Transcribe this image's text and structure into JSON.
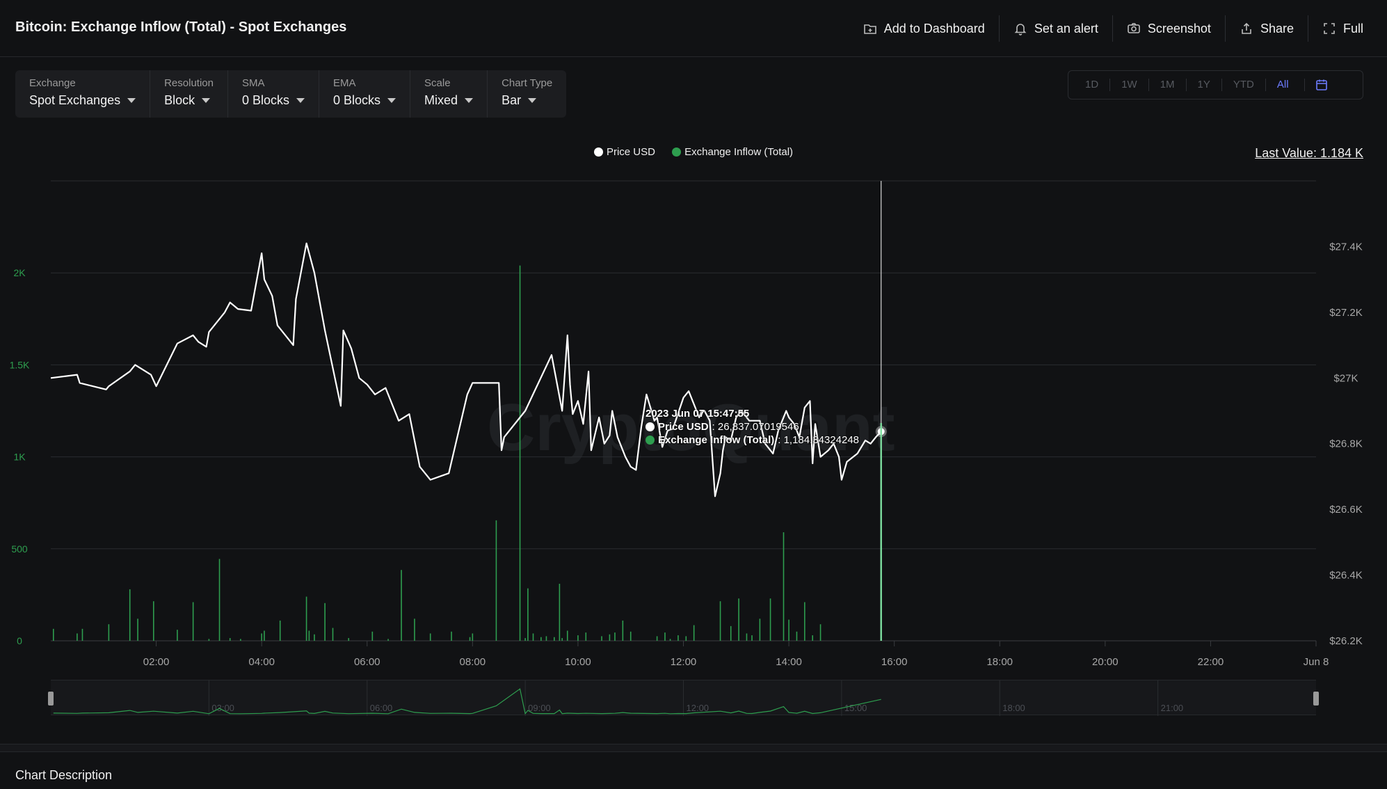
{
  "header": {
    "title": "Bitcoin: Exchange Inflow (Total) - Spot Exchanges",
    "actions": [
      {
        "label": "Add to Dashboard",
        "icon": "dashboard-add-icon"
      },
      {
        "label": "Set an alert",
        "icon": "bell-icon"
      },
      {
        "label": "Screenshot",
        "icon": "camera-icon"
      },
      {
        "label": "Share",
        "icon": "share-icon"
      },
      {
        "label": "Full",
        "icon": "fullscreen-icon"
      }
    ]
  },
  "filters": [
    {
      "label": "Exchange",
      "value": "Spot Exchanges"
    },
    {
      "label": "Resolution",
      "value": "Block"
    },
    {
      "label": "SMA",
      "value": "0 Blocks"
    },
    {
      "label": "EMA",
      "value": "0 Blocks"
    },
    {
      "label": "Scale",
      "value": "Mixed"
    },
    {
      "label": "Chart Type",
      "value": "Bar"
    }
  ],
  "ranges": [
    "1D",
    "1W",
    "1M",
    "1Y",
    "YTD",
    "All"
  ],
  "active_range": "All",
  "legend": {
    "price": "Price USD",
    "inflow": "Exchange Inflow (Total)"
  },
  "last_value": "Last Value: 1.184 K",
  "watermark": "CryptoQuant",
  "tooltip": {
    "time": "2023 Jun 07 15:47:55",
    "price_label": "Price USD",
    "price_value": ": 26,837.07019546",
    "inflow_label": "Exchange Inflow (Total)",
    "inflow_value": ": 1,184.34324248"
  },
  "colors": {
    "price_line": "#ffffff",
    "inflow_bar": "#2e9e4f",
    "left_axis": "#2e9e4f",
    "active_range": "#6d7cff",
    "background": "#111214"
  },
  "chart_data": {
    "type": "line",
    "x_axis": {
      "range": [
        0.0,
        24.0
      ],
      "ticks": [
        {
          "value": 2,
          "label": "02:00"
        },
        {
          "value": 4,
          "label": "04:00"
        },
        {
          "value": 6,
          "label": "06:00"
        },
        {
          "value": 8,
          "label": "08:00"
        },
        {
          "value": 10,
          "label": "10:00"
        },
        {
          "value": 12,
          "label": "12:00"
        },
        {
          "value": 14,
          "label": "14:00"
        },
        {
          "value": 16,
          "label": "16:00"
        },
        {
          "value": 18,
          "label": "18:00"
        },
        {
          "value": 20,
          "label": "20:00"
        },
        {
          "value": 22,
          "label": "22:00"
        },
        {
          "value": 24,
          "label": "Jun 8"
        }
      ]
    },
    "left_axis": {
      "range": [
        0,
        2500
      ],
      "ticks": [
        {
          "value": 0,
          "label": "0"
        },
        {
          "value": 500,
          "label": "500"
        },
        {
          "value": 1000,
          "label": "1K"
        },
        {
          "value": 1500,
          "label": "1.5K"
        },
        {
          "value": 2000,
          "label": "2K"
        }
      ]
    },
    "right_axis": {
      "range": [
        26200,
        27600
      ],
      "ticks": [
        {
          "value": 26200,
          "label": "$26.2K"
        },
        {
          "value": 26400,
          "label": "$26.4K"
        },
        {
          "value": 26600,
          "label": "$26.6K"
        },
        {
          "value": 26800,
          "label": "$26.8K"
        },
        {
          "value": 27000,
          "label": "$27K"
        },
        {
          "value": 27200,
          "label": "$27.2K"
        },
        {
          "value": 27400,
          "label": "$27.4K"
        }
      ]
    },
    "series": [
      {
        "name": "Price USD",
        "type": "line",
        "points": [
          [
            0.0,
            27000
          ],
          [
            0.5,
            27010
          ],
          [
            0.55,
            26985
          ],
          [
            1.05,
            26965
          ],
          [
            1.1,
            26975
          ],
          [
            1.5,
            27020
          ],
          [
            1.6,
            27040
          ],
          [
            1.9,
            27010
          ],
          [
            2.0,
            26975
          ],
          [
            2.4,
            27105
          ],
          [
            2.7,
            27130
          ],
          [
            2.8,
            27110
          ],
          [
            2.95,
            27095
          ],
          [
            3.0,
            27140
          ],
          [
            3.3,
            27200
          ],
          [
            3.4,
            27230
          ],
          [
            3.55,
            27210
          ],
          [
            3.8,
            27205
          ],
          [
            4.0,
            27380
          ],
          [
            4.05,
            27300
          ],
          [
            4.2,
            27250
          ],
          [
            4.3,
            27160
          ],
          [
            4.6,
            27100
          ],
          [
            4.65,
            27240
          ],
          [
            4.85,
            27410
          ],
          [
            5.0,
            27320
          ],
          [
            5.2,
            27145
          ],
          [
            5.5,
            26915
          ],
          [
            5.55,
            27145
          ],
          [
            5.7,
            27090
          ],
          [
            5.85,
            27000
          ],
          [
            6.0,
            26980
          ],
          [
            6.15,
            26950
          ],
          [
            6.35,
            26970
          ],
          [
            6.6,
            26870
          ],
          [
            6.8,
            26890
          ],
          [
            7.0,
            26730
          ],
          [
            7.2,
            26690
          ],
          [
            7.55,
            26710
          ],
          [
            7.9,
            26950
          ],
          [
            8.0,
            26985
          ],
          [
            8.5,
            26985
          ],
          [
            8.55,
            26780
          ],
          [
            8.6,
            26820
          ],
          [
            9.0,
            26900
          ],
          [
            9.5,
            27070
          ],
          [
            9.7,
            26900
          ],
          [
            9.8,
            27130
          ],
          [
            9.85,
            26980
          ],
          [
            9.9,
            26890
          ],
          [
            10.0,
            26930
          ],
          [
            10.1,
            26860
          ],
          [
            10.2,
            27020
          ],
          [
            10.25,
            26780
          ],
          [
            10.4,
            26880
          ],
          [
            10.5,
            26800
          ],
          [
            10.6,
            26825
          ],
          [
            10.65,
            26900
          ],
          [
            10.75,
            26820
          ],
          [
            10.9,
            26760
          ],
          [
            11.0,
            26730
          ],
          [
            11.1,
            26720
          ],
          [
            11.2,
            26850
          ],
          [
            11.3,
            26950
          ],
          [
            11.45,
            26870
          ],
          [
            11.5,
            26880
          ],
          [
            11.6,
            26790
          ],
          [
            11.7,
            26840
          ],
          [
            11.8,
            26845
          ],
          [
            12.0,
            26940
          ],
          [
            12.1,
            26960
          ],
          [
            12.3,
            26880
          ],
          [
            12.35,
            26900
          ],
          [
            12.4,
            26900
          ],
          [
            12.5,
            26870
          ],
          [
            12.6,
            26640
          ],
          [
            12.7,
            26710
          ],
          [
            12.75,
            26780
          ],
          [
            12.8,
            26820
          ],
          [
            12.9,
            26810
          ],
          [
            13.0,
            26880
          ],
          [
            13.1,
            26900
          ],
          [
            13.25,
            26870
          ],
          [
            13.45,
            26870
          ],
          [
            13.55,
            26800
          ],
          [
            13.7,
            26770
          ],
          [
            13.8,
            26840
          ],
          [
            13.95,
            26900
          ],
          [
            14.0,
            26880
          ],
          [
            14.1,
            26860
          ],
          [
            14.2,
            26820
          ],
          [
            14.3,
            26910
          ],
          [
            14.4,
            26930
          ],
          [
            14.45,
            26740
          ],
          [
            14.5,
            26860
          ],
          [
            14.6,
            26760
          ],
          [
            14.75,
            26780
          ],
          [
            14.85,
            26800
          ],
          [
            14.95,
            26760
          ],
          [
            15.0,
            26690
          ],
          [
            15.1,
            26745
          ],
          [
            15.3,
            26770
          ],
          [
            15.45,
            26810
          ],
          [
            15.55,
            26800
          ],
          [
            15.65,
            26820
          ],
          [
            15.75,
            26837
          ]
        ]
      },
      {
        "name": "Exchange Inflow (Total)",
        "type": "bar",
        "points": [
          [
            0.05,
            65
          ],
          [
            0.5,
            40
          ],
          [
            0.6,
            65
          ],
          [
            1.1,
            90
          ],
          [
            1.5,
            280
          ],
          [
            1.65,
            120
          ],
          [
            1.95,
            215
          ],
          [
            2.4,
            60
          ],
          [
            2.7,
            210
          ],
          [
            3.0,
            10
          ],
          [
            3.2,
            445
          ],
          [
            3.4,
            15
          ],
          [
            3.6,
            10
          ],
          [
            4.0,
            40
          ],
          [
            4.05,
            55
          ],
          [
            4.35,
            110
          ],
          [
            4.85,
            240
          ],
          [
            4.9,
            55
          ],
          [
            5.0,
            35
          ],
          [
            5.2,
            205
          ],
          [
            5.35,
            70
          ],
          [
            5.65,
            15
          ],
          [
            6.1,
            50
          ],
          [
            6.4,
            10
          ],
          [
            6.65,
            385
          ],
          [
            6.9,
            120
          ],
          [
            7.2,
            40
          ],
          [
            7.6,
            50
          ],
          [
            7.95,
            20
          ],
          [
            8.0,
            40
          ],
          [
            8.45,
            655
          ],
          [
            8.9,
            2040
          ],
          [
            9.0,
            15
          ],
          [
            9.05,
            285
          ],
          [
            9.15,
            40
          ],
          [
            9.3,
            20
          ],
          [
            9.4,
            25
          ],
          [
            9.55,
            20
          ],
          [
            9.65,
            310
          ],
          [
            9.7,
            15
          ],
          [
            9.8,
            55
          ],
          [
            10.0,
            30
          ],
          [
            10.15,
            45
          ],
          [
            10.45,
            25
          ],
          [
            10.6,
            35
          ],
          [
            10.7,
            45
          ],
          [
            10.85,
            110
          ],
          [
            11.0,
            50
          ],
          [
            11.5,
            25
          ],
          [
            11.65,
            45
          ],
          [
            11.75,
            10
          ],
          [
            11.9,
            30
          ],
          [
            12.05,
            25
          ],
          [
            12.2,
            85
          ],
          [
            12.7,
            215
          ],
          [
            12.9,
            80
          ],
          [
            13.05,
            230
          ],
          [
            13.2,
            40
          ],
          [
            13.3,
            30
          ],
          [
            13.45,
            120
          ],
          [
            13.65,
            230
          ],
          [
            13.9,
            590
          ],
          [
            14.0,
            115
          ],
          [
            14.15,
            50
          ],
          [
            14.3,
            210
          ],
          [
            14.45,
            30
          ],
          [
            14.6,
            90
          ],
          [
            15.75,
            1184
          ]
        ]
      }
    ],
    "crosshair_x": 15.75,
    "navigator_ticks": [
      {
        "value": 3,
        "label": "03:00"
      },
      {
        "value": 6,
        "label": "06:00"
      },
      {
        "value": 9,
        "label": "09:00"
      },
      {
        "value": 12,
        "label": "12:00"
      },
      {
        "value": 15,
        "label": "15:00"
      },
      {
        "value": 18,
        "label": "18:00"
      },
      {
        "value": 21,
        "label": "21:00"
      }
    ],
    "grid": true,
    "legend_position": "top-center"
  },
  "footer": {
    "section_title": "Chart Description"
  }
}
